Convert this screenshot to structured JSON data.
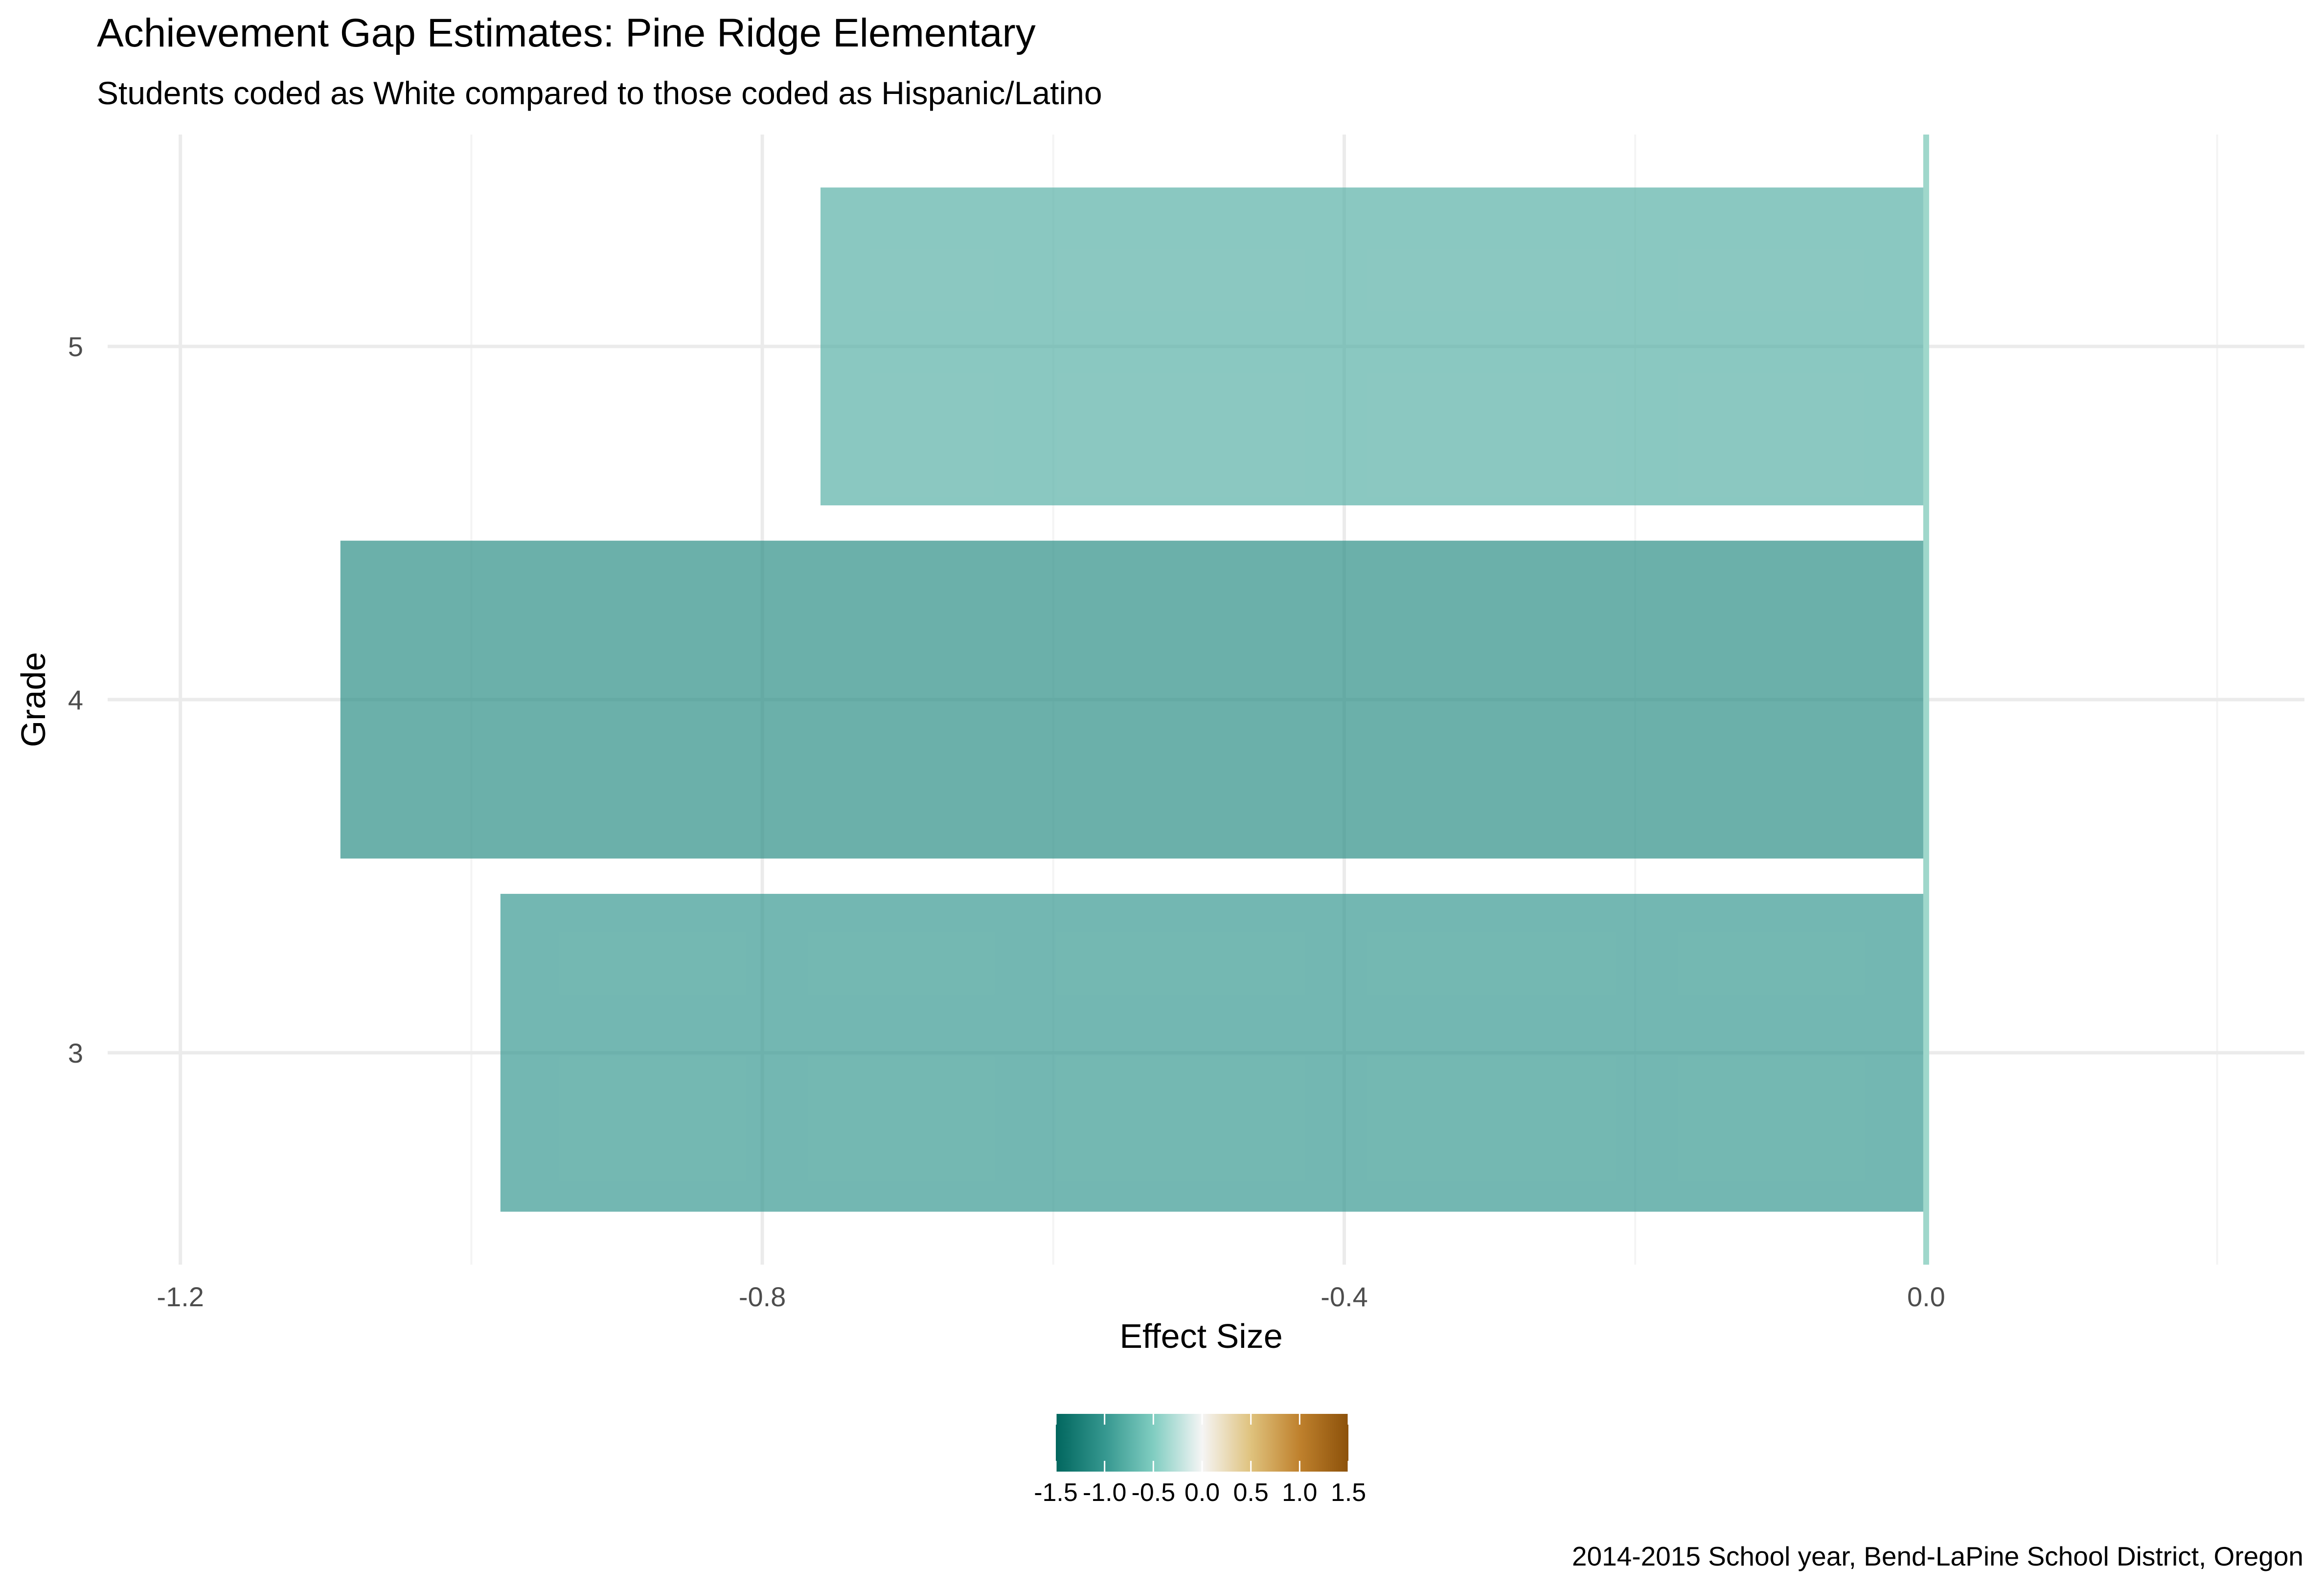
{
  "chart_data": {
    "type": "bar",
    "orientation": "horizontal",
    "title": "Achievement Gap Estimates: Pine Ridge Elementary",
    "subtitle": "Students coded as White compared to those coded as Hispanic/Latino",
    "xlabel": "Effect Size",
    "ylabel": "Grade",
    "caption": "2014-2015 School year, Bend-LaPine School District, Oregon",
    "categories": [
      "3",
      "4",
      "5"
    ],
    "values": [
      -0.98,
      -1.09,
      -0.76
    ],
    "xlim": [
      -1.25,
      0.26
    ],
    "x_ticks": [
      -1.2,
      -0.8,
      -0.4,
      0.0
    ],
    "x_tick_labels": [
      "-1.2",
      "-0.8",
      "-0.4",
      "0.0"
    ],
    "reference_line": 0.0,
    "grid": true,
    "fill_scale": {
      "palette": "BrBG (reversed)",
      "limits": [
        -1.5,
        1.5
      ],
      "breaks": [
        -1.5,
        -1.0,
        -0.5,
        0.0,
        0.5,
        1.0,
        1.5
      ],
      "labels": [
        "-1.5",
        "-1.0",
        "-0.5",
        "0.0",
        "0.5",
        "1.0",
        "1.5"
      ],
      "colors": [
        "#01665e",
        "#35978f",
        "#80cdc1",
        "#f5f5f5",
        "#dfc27d",
        "#bf812d",
        "#8c510a"
      ]
    },
    "legend_position": "bottom"
  },
  "colors": {
    "grid_major": "#ebebeb",
    "grid_minor": "#f4f4f4",
    "zero_line": "#9fd7cb",
    "bar_opacity": 0.7
  }
}
